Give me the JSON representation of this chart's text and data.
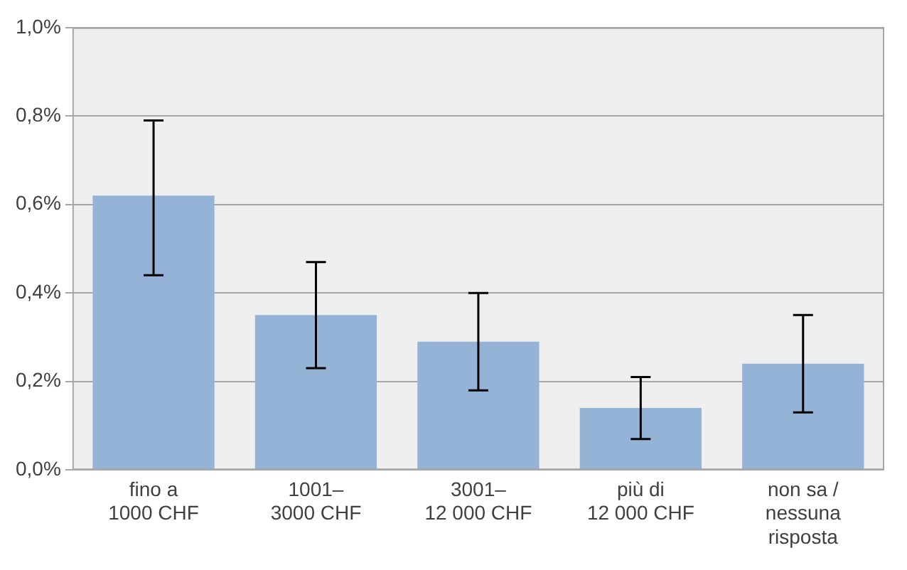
{
  "chart_data": {
    "type": "bar",
    "categories": [
      "fino a\n1000 CHF",
      "1001–\n3000 CHF",
      "3001–\n12 000 CHF",
      "più di\n12 000 CHF",
      "non sa /\nnessuna\nrisposta"
    ],
    "values": [
      0.62,
      0.35,
      0.29,
      0.14,
      0.24
    ],
    "errors": [
      [
        0.44,
        0.79
      ],
      [
        0.23,
        0.47
      ],
      [
        0.18,
        0.4
      ],
      [
        0.07,
        0.21
      ],
      [
        0.13,
        0.35
      ]
    ],
    "color": "#95b3d7",
    "ylim": [
      0,
      1.0
    ],
    "yticks": [
      {
        "value": 0,
        "label": "0,0%"
      },
      {
        "value": 0.2,
        "label": "0,2%"
      },
      {
        "value": 0.4,
        "label": "0,4%"
      },
      {
        "value": 0.6,
        "label": "0,6%"
      },
      {
        "value": 0.8,
        "label": "0,8%"
      },
      {
        "value": 1.0,
        "label": "1,0%"
      }
    ],
    "grid": "y",
    "legend": false
  }
}
